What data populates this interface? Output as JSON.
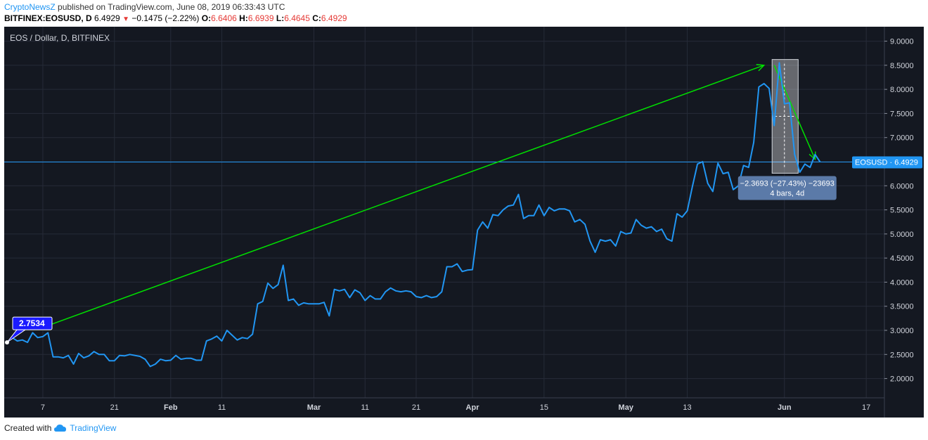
{
  "header": {
    "author": "CryptoNewsZ",
    "published_text": "published on TradingView.com, June 08, 2019 06:33:43 UTC",
    "symbol_line": "BITFINEX:EOSUSD, D",
    "last": "6.4929",
    "change": "−0.1475 (−2.22%)",
    "o_label": "O:",
    "o_value": "6.6406",
    "h_label": "H:",
    "h_value": "6.6939",
    "l_label": "L:",
    "l_value": "6.4645",
    "c_label": "C:",
    "c_value": "6.4929"
  },
  "chart_title": "EOS / Dollar, D, BITFINEX",
  "price_label": "EOSUSD · 6.4929",
  "start_label": "2.7534",
  "measure": {
    "line1": "−2.3693 (−27.43%) −23693",
    "line2": "4 bars, 4d"
  },
  "footer": {
    "created_with": "Created with",
    "brand": "TradingView"
  },
  "colors": {
    "line": "#2196f3",
    "arrow": "#00e000",
    "background": "#141821",
    "grid": "#262b38"
  },
  "chart_data": {
    "type": "line",
    "title": "EOS / Dollar, D, BITFINEX",
    "series": [
      {
        "name": "EOSUSD",
        "x": [
          "2018-12-31",
          "2019-01-01",
          "2019-01-02",
          "2019-01-03",
          "2019-01-04",
          "2019-01-05",
          "2019-01-06",
          "2019-01-07",
          "2019-01-08",
          "2019-01-09",
          "2019-01-10",
          "2019-01-11",
          "2019-01-12",
          "2019-01-13",
          "2019-01-14",
          "2019-01-15",
          "2019-01-16",
          "2019-01-17",
          "2019-01-18",
          "2019-01-19",
          "2019-01-20",
          "2019-01-21",
          "2019-01-22",
          "2019-01-23",
          "2019-01-24",
          "2019-01-25",
          "2019-01-26",
          "2019-01-27",
          "2019-01-28",
          "2019-01-29",
          "2019-01-30",
          "2019-01-31",
          "2019-02-01",
          "2019-02-02",
          "2019-02-03",
          "2019-02-04",
          "2019-02-05",
          "2019-02-06",
          "2019-02-07",
          "2019-02-08",
          "2019-02-09",
          "2019-02-10",
          "2019-02-11",
          "2019-02-12",
          "2019-02-13",
          "2019-02-14",
          "2019-02-15",
          "2019-02-16",
          "2019-02-17",
          "2019-02-18",
          "2019-02-19",
          "2019-02-20",
          "2019-02-21",
          "2019-02-22",
          "2019-02-23",
          "2019-02-24",
          "2019-02-25",
          "2019-02-26",
          "2019-02-27",
          "2019-02-28",
          "2019-03-01",
          "2019-03-02",
          "2019-03-03",
          "2019-03-04",
          "2019-03-05",
          "2019-03-06",
          "2019-03-07",
          "2019-03-08",
          "2019-03-09",
          "2019-03-10",
          "2019-03-11",
          "2019-03-12",
          "2019-03-13",
          "2019-03-14",
          "2019-03-15",
          "2019-03-16",
          "2019-03-17",
          "2019-03-18",
          "2019-03-19",
          "2019-03-20",
          "2019-03-21",
          "2019-03-22",
          "2019-03-23",
          "2019-03-24",
          "2019-03-25",
          "2019-03-26",
          "2019-03-27",
          "2019-03-28",
          "2019-03-29",
          "2019-03-30",
          "2019-03-31",
          "2019-04-01",
          "2019-04-02",
          "2019-04-03",
          "2019-04-04",
          "2019-04-05",
          "2019-04-06",
          "2019-04-07",
          "2019-04-08",
          "2019-04-09",
          "2019-04-10",
          "2019-04-11",
          "2019-04-12",
          "2019-04-13",
          "2019-04-14",
          "2019-04-15",
          "2019-04-16",
          "2019-04-17",
          "2019-04-18",
          "2019-04-19",
          "2019-04-20",
          "2019-04-21",
          "2019-04-22",
          "2019-04-23",
          "2019-04-24",
          "2019-04-25",
          "2019-04-26",
          "2019-04-27",
          "2019-04-28",
          "2019-04-29",
          "2019-04-30",
          "2019-05-01",
          "2019-05-02",
          "2019-05-03",
          "2019-05-04",
          "2019-05-05",
          "2019-05-06",
          "2019-05-07",
          "2019-05-08",
          "2019-05-09",
          "2019-05-10",
          "2019-05-11",
          "2019-05-12",
          "2019-05-13",
          "2019-05-14",
          "2019-05-15",
          "2019-05-16",
          "2019-05-17",
          "2019-05-18",
          "2019-05-19",
          "2019-05-20",
          "2019-05-21",
          "2019-05-22",
          "2019-05-23",
          "2019-05-24",
          "2019-05-25",
          "2019-05-26",
          "2019-05-27",
          "2019-05-28",
          "2019-05-29",
          "2019-05-30",
          "2019-05-31",
          "2019-06-01",
          "2019-06-02",
          "2019-06-03",
          "2019-06-04",
          "2019-06-05",
          "2019-06-06",
          "2019-06-07",
          "2019-06-08"
        ],
        "y": [
          2.75,
          2.85,
          2.78,
          2.8,
          2.75,
          2.95,
          2.85,
          2.87,
          2.95,
          2.45,
          2.45,
          2.43,
          2.48,
          2.3,
          2.52,
          2.43,
          2.47,
          2.56,
          2.5,
          2.5,
          2.37,
          2.37,
          2.48,
          2.47,
          2.5,
          2.48,
          2.46,
          2.4,
          2.25,
          2.3,
          2.4,
          2.37,
          2.38,
          2.48,
          2.4,
          2.42,
          2.42,
          2.38,
          2.38,
          2.78,
          2.82,
          2.88,
          2.78,
          3.0,
          2.9,
          2.8,
          2.85,
          2.83,
          2.92,
          3.55,
          3.6,
          3.98,
          3.87,
          3.95,
          4.35,
          3.62,
          3.65,
          3.52,
          3.57,
          3.55,
          3.55,
          3.55,
          3.58,
          3.3,
          3.85,
          3.82,
          3.85,
          3.68,
          3.84,
          3.78,
          3.62,
          3.72,
          3.65,
          3.65,
          3.8,
          3.88,
          3.82,
          3.8,
          3.82,
          3.8,
          3.7,
          3.68,
          3.72,
          3.68,
          3.7,
          3.8,
          4.32,
          4.32,
          4.38,
          4.22,
          4.25,
          4.26,
          5.08,
          5.25,
          5.12,
          5.4,
          5.38,
          5.5,
          5.58,
          5.6,
          5.82,
          5.32,
          5.38,
          5.38,
          5.6,
          5.38,
          5.55,
          5.48,
          5.52,
          5.52,
          5.48,
          5.25,
          5.3,
          5.2,
          4.85,
          4.62,
          4.88,
          4.85,
          4.88,
          4.75,
          5.05,
          5.0,
          5.02,
          5.3,
          5.18,
          5.12,
          5.15,
          5.05,
          5.1,
          4.9,
          4.85,
          5.42,
          5.35,
          5.48,
          5.98,
          6.45,
          6.5,
          6.05,
          5.88,
          6.47,
          6.25,
          6.28,
          5.92,
          6.0,
          6.42,
          6.38,
          6.9,
          8.05,
          8.12,
          8.02,
          7.25,
          8.55,
          7.7,
          7.72,
          6.65,
          6.28,
          6.45,
          6.38,
          6.65,
          6.49
        ]
      }
    ],
    "ylim": [
      1.6,
      9.3
    ],
    "yticks": [
      "9.0000",
      "8.5000",
      "8.0000",
      "7.5000",
      "7.0000",
      "6.5000",
      "6.0000",
      "5.5000",
      "5.0000",
      "4.5000",
      "4.0000",
      "3.5000",
      "3.0000",
      "2.5000",
      "2.0000"
    ],
    "xticks": [
      {
        "date": "2019-01-07",
        "label": "7"
      },
      {
        "date": "2019-01-21",
        "label": "21"
      },
      {
        "date": "2019-02-01",
        "label": "Feb"
      },
      {
        "date": "2019-02-11",
        "label": "11"
      },
      {
        "date": "2019-03-01",
        "label": "Mar"
      },
      {
        "date": "2019-03-11",
        "label": "11"
      },
      {
        "date": "2019-03-21",
        "label": "21"
      },
      {
        "date": "2019-04-01",
        "label": "Apr"
      },
      {
        "date": "2019-04-15",
        "label": "15"
      },
      {
        "date": "2019-05-01",
        "label": "May"
      },
      {
        "date": "2019-05-13",
        "label": "13"
      },
      {
        "date": "2019-06-01",
        "label": "Jun"
      },
      {
        "date": "2019-06-17",
        "label": "17"
      }
    ],
    "xlim": [
      "2018-12-31",
      "2019-06-20"
    ],
    "grid": true,
    "last_price": 6.4929,
    "annotations": [
      {
        "type": "arrow",
        "from": {
          "date": "2019-01-08",
          "y": 3.1
        },
        "to": {
          "date": "2019-05-28",
          "y": 8.5
        }
      },
      {
        "type": "arrow",
        "from": {
          "date": "2019-05-30",
          "y": 8.5
        },
        "to": {
          "date": "2019-06-07",
          "y": 6.55
        }
      },
      {
        "type": "measure_box",
        "from": {
          "date": "2019-05-30",
          "y": 8.62
        },
        "to": {
          "date": "2019-06-03",
          "y": 6.26
        }
      }
    ]
  }
}
